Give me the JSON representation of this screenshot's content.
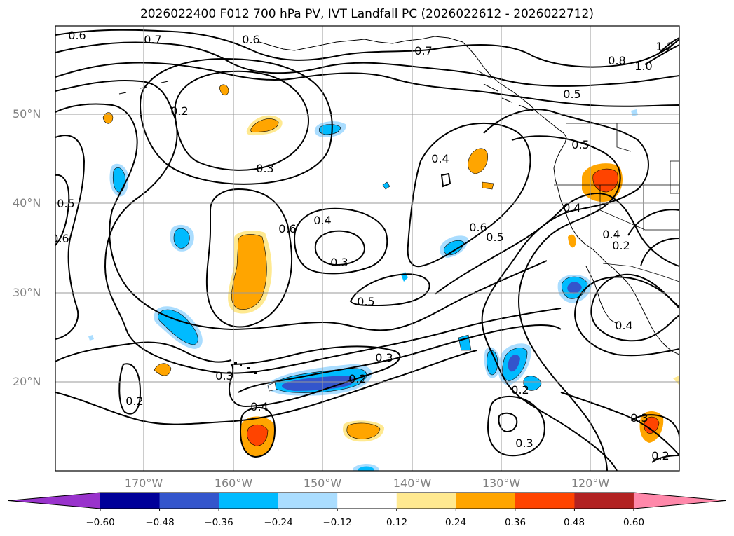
{
  "title": "2026022400 F012 700 hPa PV, IVT Landfall PC (2026022612 - 2026022712)",
  "latitude_labels": [
    "50°N",
    "40°N",
    "30°N",
    "20°N"
  ],
  "longitude_labels": [
    "170°W",
    "160°W",
    "150°W",
    "140°W",
    "130°W",
    "120°W"
  ],
  "colorbar": {
    "tick_labels": [
      "−0.60",
      "−0.48",
      "−0.36",
      "−0.24",
      "−0.12",
      "0.12",
      "0.24",
      "0.36",
      "0.48",
      "0.60"
    ],
    "colors": [
      "#9933cc",
      "#000099",
      "#3355cc",
      "#00bbff",
      "#aaddff",
      "#ffffff",
      "#ffe990",
      "#ffa500",
      "#ff4400",
      "#b22222",
      "#ff88aa"
    ]
  },
  "contour_labels": [
    "0.6",
    "0.7",
    "0.6",
    "0.7",
    "0.8",
    "1.0",
    "1.2",
    "0.5",
    "0.2",
    "0.3",
    "0.6",
    "0.4",
    "0.5",
    "0.6",
    "0.4",
    "0.3",
    "0.6",
    "0.5",
    "0.4",
    "0.5",
    "0.5",
    "0.4",
    "0.4",
    "0.3",
    "0.2",
    "0.2",
    "0.4",
    "0.3",
    "0.2",
    "0.3",
    "0.2",
    "0.3",
    "0.2"
  ]
}
